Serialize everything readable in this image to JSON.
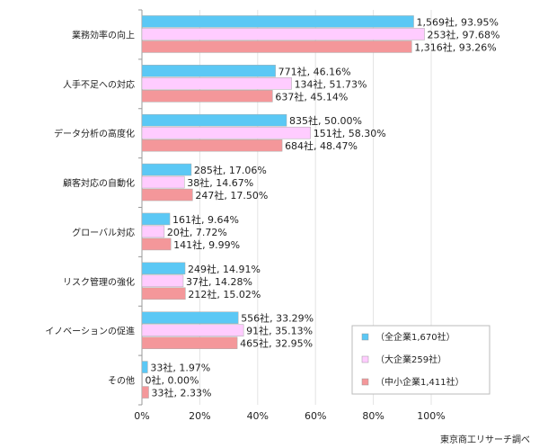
{
  "chart_data": {
    "type": "bar",
    "orientation": "horizontal",
    "categories": [
      "業務効率の向上",
      "人手不足への対応",
      "データ分析の高度化",
      "顧客対応の自動化",
      "グローバル対応",
      "リスク管理の強化",
      "イノベーションの促進",
      "その他"
    ],
    "series": [
      {
        "name": "（全企業1,670社）",
        "color": "#5bc8f5",
        "values": [
          93.95,
          46.16,
          50.0,
          17.06,
          9.64,
          14.91,
          33.29,
          1.97
        ],
        "labels": [
          "1,569社, 93.95%",
          "771社, 46.16%",
          "835社, 50.00%",
          "285社, 17.06%",
          "161社, 9.64%",
          "249社, 14.91%",
          "556社, 33.29%",
          "33社, 1.97%"
        ]
      },
      {
        "name": "（大企業259社）",
        "color": "#ffccff",
        "values": [
          97.68,
          51.73,
          58.3,
          14.67,
          7.72,
          14.28,
          35.13,
          0.0
        ],
        "labels": [
          "253社, 97.68%",
          "134社, 51.73%",
          "151社, 58.30%",
          "38社, 14.67%",
          "20社, 7.72%",
          "37社, 14.28%",
          "91社, 35.13%",
          "0社, 0.00%"
        ]
      },
      {
        "name": "（中小企業1,411社）",
        "color": "#f4979a",
        "values": [
          93.26,
          45.14,
          48.47,
          17.5,
          9.99,
          15.02,
          32.95,
          2.33
        ],
        "labels": [
          "1,316社, 93.26%",
          "637社, 45.14%",
          "684社, 48.47%",
          "247社, 17.50%",
          "141社, 9.99%",
          "212社, 15.02%",
          "465社, 32.95%",
          "33社, 2.33%"
        ]
      }
    ],
    "xlim": [
      0,
      100
    ],
    "xticks": [
      "0%",
      "20%",
      "40%",
      "60%",
      "80%",
      "100%"
    ],
    "grid": true,
    "legend": "bottom-right"
  },
  "source": "東京商工リサーチ調べ"
}
